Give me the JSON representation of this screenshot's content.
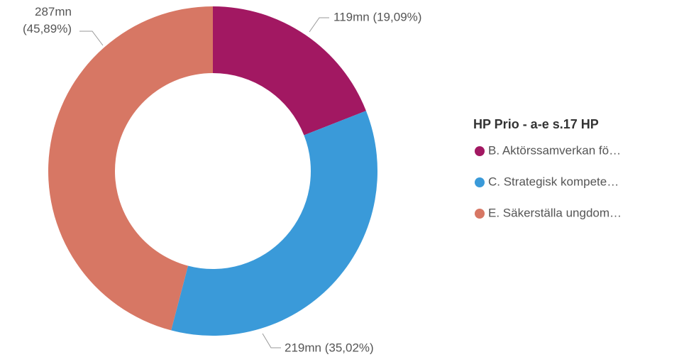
{
  "chart_data": {
    "type": "donut",
    "legend_title": "HP Prio - a-e s.17 HP",
    "categories": [
      "B. Aktörssamverkan fö…",
      "C. Strategisk kompete…",
      "E. Säkerställa ungdom…"
    ],
    "values": [
      119,
      219,
      287
    ],
    "value_labels": [
      "119mn (19,09%)",
      "219mn (35,02%)",
      "287mn (45,89%)"
    ],
    "colors": [
      "#a21862",
      "#3a9ad9",
      "#d77764"
    ],
    "legend": "right"
  }
}
